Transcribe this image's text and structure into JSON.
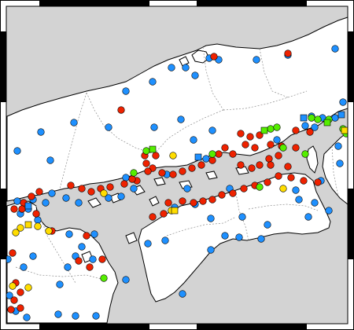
{
  "map": {
    "colors": {
      "sea": "#d3d3d3",
      "land": "#ffffff",
      "coast": "#000000",
      "prefecture_border": "#8c8c8c",
      "frame_dark": "#000000",
      "frame_light": "#ffffff"
    },
    "marker_legend": [
      {
        "category": "red-circle",
        "color": "#ee2200"
      },
      {
        "category": "blue-circle",
        "color": "#1e90ff"
      },
      {
        "category": "yellow-circle",
        "color": "#ffdd00"
      },
      {
        "category": "green-circle",
        "color": "#55ee00"
      },
      {
        "category": "blue-square",
        "color": "#1e90ff"
      },
      {
        "category": "yellow-square",
        "color": "#ffdd00"
      },
      {
        "category": "green-square",
        "color": "#55ee00"
      }
    ]
  }
}
